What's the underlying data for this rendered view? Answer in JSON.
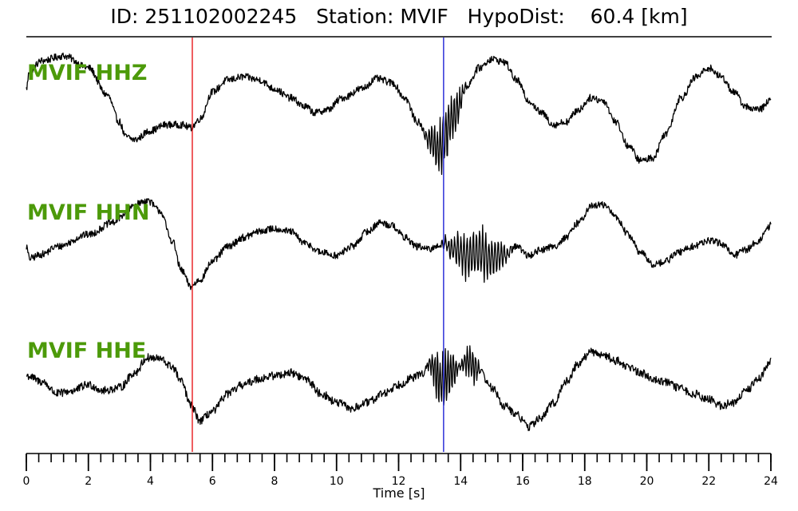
{
  "title": {
    "id_label": "ID:",
    "id_value": "251102002245",
    "station_label": "Station:",
    "station_value": "MVIF",
    "hypodist_label": "HypoDist:",
    "hypodist_value": "60.4",
    "hypodist_unit": "[km]"
  },
  "chart_data": {
    "type": "line",
    "xlabel": "Time [s]",
    "xlim": [
      0,
      24
    ],
    "x_ticks": [
      0,
      2,
      4,
      6,
      8,
      10,
      12,
      14,
      16,
      18,
      20,
      22,
      24
    ],
    "x_tick_labels": [
      "0",
      "2",
      "4",
      "6",
      "8",
      "10",
      "12",
      "14",
      "16",
      "18",
      "20",
      "22",
      "24"
    ],
    "minor_tick_step": 0.4,
    "markers": [
      {
        "name": "P pick",
        "x": 5.35,
        "color": "#e8191c"
      },
      {
        "name": "S pick",
        "x": 13.45,
        "color": "#1f24d6"
      }
    ],
    "trace_label_color": "#4c9a0a",
    "series": [
      {
        "name": "MVIF HHZ",
        "noise": 0.06,
        "knots": [
          [
            0,
            0.25
          ],
          [
            0.1,
            0.55
          ],
          [
            0.5,
            0.72
          ],
          [
            1.2,
            0.8
          ],
          [
            2.0,
            0.6
          ],
          [
            2.6,
            0.15
          ],
          [
            3.0,
            -0.3
          ],
          [
            3.2,
            -0.55
          ],
          [
            3.5,
            -0.6
          ],
          [
            4.0,
            -0.45
          ],
          [
            4.5,
            -0.35
          ],
          [
            5.0,
            -0.35
          ],
          [
            5.3,
            -0.4
          ],
          [
            5.6,
            -0.25
          ],
          [
            6.0,
            0.2
          ],
          [
            6.5,
            0.4
          ],
          [
            7.0,
            0.45
          ],
          [
            7.5,
            0.4
          ],
          [
            8.0,
            0.25
          ],
          [
            8.5,
            0.1
          ],
          [
            9.0,
            -0.05
          ],
          [
            9.3,
            -0.15
          ],
          [
            9.7,
            -0.1
          ],
          [
            10.2,
            0.1
          ],
          [
            10.8,
            0.25
          ],
          [
            11.3,
            0.42
          ],
          [
            11.8,
            0.35
          ],
          [
            12.2,
            0.1
          ],
          [
            12.6,
            -0.3
          ],
          [
            13.0,
            -0.6
          ],
          [
            13.3,
            -0.75
          ],
          [
            13.8,
            -0.2
          ],
          [
            14.2,
            0.3
          ],
          [
            14.6,
            0.6
          ],
          [
            15.0,
            0.75
          ],
          [
            15.4,
            0.7
          ],
          [
            15.8,
            0.4
          ],
          [
            16.2,
            0.05
          ],
          [
            16.6,
            -0.15
          ],
          [
            17.0,
            -0.35
          ],
          [
            17.4,
            -0.3
          ],
          [
            17.8,
            -0.1
          ],
          [
            18.2,
            0.1
          ],
          [
            18.6,
            0.05
          ],
          [
            19.0,
            -0.3
          ],
          [
            19.4,
            -0.7
          ],
          [
            19.8,
            -0.95
          ],
          [
            20.2,
            -0.9
          ],
          [
            20.6,
            -0.5
          ],
          [
            21.1,
            0.1
          ],
          [
            21.6,
            0.45
          ],
          [
            22.0,
            0.6
          ],
          [
            22.4,
            0.45
          ],
          [
            22.8,
            0.2
          ],
          [
            23.2,
            -0.05
          ],
          [
            23.6,
            -0.1
          ],
          [
            24.0,
            0.05
          ]
        ],
        "bursts": [
          [
            12.8,
            14.2,
            0.55,
            0.09
          ]
        ]
      },
      {
        "name": "MVIF HHN",
        "noise": 0.06,
        "knots": [
          [
            0,
            -0.05
          ],
          [
            0.1,
            -0.25
          ],
          [
            0.5,
            -0.18
          ],
          [
            1.0,
            -0.05
          ],
          [
            2.0,
            0.15
          ],
          [
            2.8,
            0.35
          ],
          [
            3.2,
            0.5
          ],
          [
            3.5,
            0.65
          ],
          [
            3.9,
            0.72
          ],
          [
            4.3,
            0.55
          ],
          [
            4.7,
            0.05
          ],
          [
            5.0,
            -0.45
          ],
          [
            5.3,
            -0.72
          ],
          [
            5.6,
            -0.6
          ],
          [
            6.0,
            -0.3
          ],
          [
            6.5,
            -0.05
          ],
          [
            7.0,
            0.1
          ],
          [
            7.5,
            0.2
          ],
          [
            8.0,
            0.25
          ],
          [
            8.5,
            0.2
          ],
          [
            9.0,
            0.0
          ],
          [
            9.5,
            -0.15
          ],
          [
            10.0,
            -0.2
          ],
          [
            10.5,
            -0.05
          ],
          [
            11.0,
            0.2
          ],
          [
            11.4,
            0.35
          ],
          [
            11.8,
            0.3
          ],
          [
            12.2,
            0.1
          ],
          [
            12.6,
            -0.05
          ],
          [
            13.0,
            -0.1
          ],
          [
            13.4,
            0.0
          ],
          [
            13.8,
            -0.1
          ],
          [
            14.2,
            -0.2
          ],
          [
            14.6,
            -0.15
          ],
          [
            15.0,
            -0.25
          ],
          [
            15.4,
            -0.2
          ],
          [
            15.8,
            -0.05
          ],
          [
            16.2,
            -0.2
          ],
          [
            16.6,
            -0.1
          ],
          [
            17.0,
            -0.05
          ],
          [
            17.4,
            0.1
          ],
          [
            17.8,
            0.35
          ],
          [
            18.2,
            0.62
          ],
          [
            18.6,
            0.65
          ],
          [
            19.0,
            0.45
          ],
          [
            19.4,
            0.15
          ],
          [
            19.8,
            -0.15
          ],
          [
            20.2,
            -0.35
          ],
          [
            20.6,
            -0.3
          ],
          [
            21.0,
            -0.15
          ],
          [
            21.5,
            -0.05
          ],
          [
            22.0,
            0.05
          ],
          [
            22.4,
            0.0
          ],
          [
            22.8,
            -0.2
          ],
          [
            23.2,
            -0.1
          ],
          [
            23.6,
            0.05
          ],
          [
            24.0,
            0.3
          ]
        ],
        "bursts": [
          [
            13.3,
            15.8,
            0.45,
            0.1
          ]
        ]
      },
      {
        "name": "MVIF HHE",
        "noise": 0.07,
        "knots": [
          [
            0,
            0.1
          ],
          [
            0.5,
            0.0
          ],
          [
            1.0,
            -0.2
          ],
          [
            1.5,
            -0.15
          ],
          [
            2.0,
            -0.05
          ],
          [
            2.5,
            -0.15
          ],
          [
            3.0,
            -0.1
          ],
          [
            3.5,
            0.15
          ],
          [
            3.9,
            0.4
          ],
          [
            4.3,
            0.38
          ],
          [
            4.7,
            0.25
          ],
          [
            5.0,
            0.0
          ],
          [
            5.3,
            -0.4
          ],
          [
            5.6,
            -0.65
          ],
          [
            6.0,
            -0.5
          ],
          [
            6.5,
            -0.2
          ],
          [
            7.0,
            -0.05
          ],
          [
            7.5,
            0.05
          ],
          [
            8.0,
            0.1
          ],
          [
            8.5,
            0.15
          ],
          [
            9.0,
            0.05
          ],
          [
            9.5,
            -0.2
          ],
          [
            10.0,
            -0.35
          ],
          [
            10.5,
            -0.45
          ],
          [
            11.0,
            -0.35
          ],
          [
            11.5,
            -0.2
          ],
          [
            12.0,
            -0.05
          ],
          [
            12.4,
            0.05
          ],
          [
            12.8,
            0.15
          ],
          [
            13.0,
            0.3
          ],
          [
            13.4,
            0.0
          ],
          [
            13.8,
            0.2
          ],
          [
            14.2,
            0.35
          ],
          [
            14.6,
            0.2
          ],
          [
            15.0,
            -0.1
          ],
          [
            15.4,
            -0.4
          ],
          [
            15.8,
            -0.55
          ],
          [
            16.2,
            -0.75
          ],
          [
            16.6,
            -0.6
          ],
          [
            17.0,
            -0.35
          ],
          [
            17.4,
            0.0
          ],
          [
            17.8,
            0.3
          ],
          [
            18.2,
            0.5
          ],
          [
            18.6,
            0.45
          ],
          [
            19.0,
            0.35
          ],
          [
            19.4,
            0.25
          ],
          [
            19.8,
            0.15
          ],
          [
            20.2,
            0.05
          ],
          [
            20.6,
            0.0
          ],
          [
            21.0,
            -0.1
          ],
          [
            21.5,
            -0.2
          ],
          [
            22.0,
            -0.3
          ],
          [
            22.4,
            -0.4
          ],
          [
            22.8,
            -0.35
          ],
          [
            23.2,
            -0.15
          ],
          [
            23.6,
            0.05
          ],
          [
            24.0,
            0.35
          ]
        ],
        "bursts": [
          [
            12.9,
            14.0,
            0.55,
            0.085
          ],
          [
            14.0,
            14.7,
            0.35,
            0.09
          ]
        ]
      }
    ]
  }
}
